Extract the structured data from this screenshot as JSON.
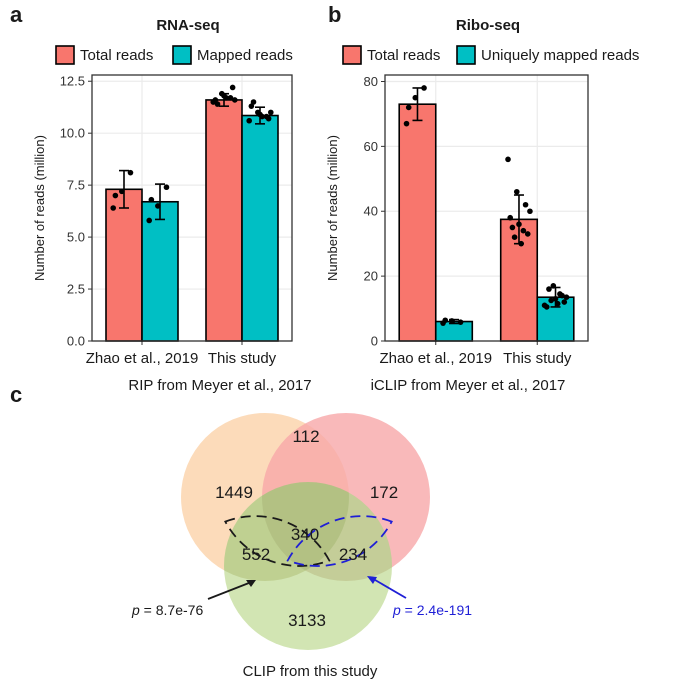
{
  "panels": {
    "a": "a",
    "b": "b",
    "c": "c"
  },
  "chart_data": [
    {
      "type": "bar",
      "title": "RNA-seq",
      "xlabel": "",
      "ylabel": "Number of reads (million)",
      "ylim": [
        0,
        12.8
      ],
      "yticks": [
        "0.0",
        "2.5",
        "5.0",
        "7.5",
        "10.0",
        "12.5"
      ],
      "ytick_values": [
        0,
        2.5,
        5,
        7.5,
        10,
        12.5
      ],
      "categories": [
        "Zhao et al., 2019",
        "This study"
      ],
      "series": [
        {
          "name": "Total reads",
          "color": "#F8766D",
          "values": [
            7.3,
            11.6
          ],
          "err": [
            0.9,
            0.3
          ],
          "points": [
            [
              6.4,
              7.2,
              8.1,
              7.0
            ],
            [
              11.5,
              11.9,
              11.7,
              11.6,
              11.8,
              12.2,
              11.4,
              11.7,
              11.6
            ]
          ]
        },
        {
          "name": "Mapped reads",
          "color": "#00BFC4",
          "values": [
            6.7,
            10.85
          ],
          "err": [
            0.85,
            0.4
          ],
          "points": [
            [
              5.8,
              6.5,
              7.4,
              6.8
            ],
            [
              10.6,
              11.0,
              10.8,
              11.3,
              10.9,
              10.7,
              11.5,
              10.8,
              11.0
            ]
          ]
        }
      ],
      "legend_position": "top"
    },
    {
      "type": "bar",
      "title": "Ribo-seq",
      "xlabel": "",
      "ylabel": "Number of reads (million)",
      "ylim": [
        0,
        82
      ],
      "yticks": [
        "0",
        "20",
        "40",
        "60",
        "80"
      ],
      "ytick_values": [
        0,
        20,
        40,
        60,
        80
      ],
      "categories": [
        "Zhao et al., 2019",
        "This study"
      ],
      "series": [
        {
          "name": "Total reads",
          "color": "#F8766D",
          "values": [
            73,
            37.5
          ],
          "err": [
            5,
            7.5
          ],
          "points": [
            [
              67,
              75,
              78,
              72
            ],
            [
              56,
              46,
              42,
              38,
              36,
              33,
              35,
              30,
              40,
              32,
              34
            ]
          ]
        },
        {
          "name": "Uniquely mapped reads",
          "color": "#00BFC4",
          "values": [
            6,
            13.5
          ],
          "err": [
            0.6,
            3
          ],
          "points": [
            [
              5.5,
              6.2,
              5.8,
              6.4
            ],
            [
              11,
              17,
              14,
              10.5,
              13,
              12,
              16,
              11.5,
              13.5,
              12.5,
              14.5
            ]
          ]
        }
      ],
      "legend_position": "top"
    }
  ],
  "venn": {
    "sets": [
      {
        "label": "RIP from Meyer et al., 2017",
        "color": "#FCD5AE"
      },
      {
        "label": "iCLIP from Meyer et al., 2017",
        "color": "#F7A7A9"
      },
      {
        "label": "CLIP from this study",
        "color": "#C7DFA0"
      }
    ],
    "regions": {
      "rip_only": "1449",
      "rip_iclip": "112",
      "iclip_only": "172",
      "rip_clip": "552",
      "all_three": "340",
      "iclip_clip": "234",
      "clip_only": "3133"
    },
    "pvalues": [
      {
        "label": "p",
        "value": " = 8.7e-76",
        "color": "#1a1a1a"
      },
      {
        "label": "p",
        "value": " = 2.4e-191",
        "color": "#1f1fd6"
      }
    ]
  }
}
